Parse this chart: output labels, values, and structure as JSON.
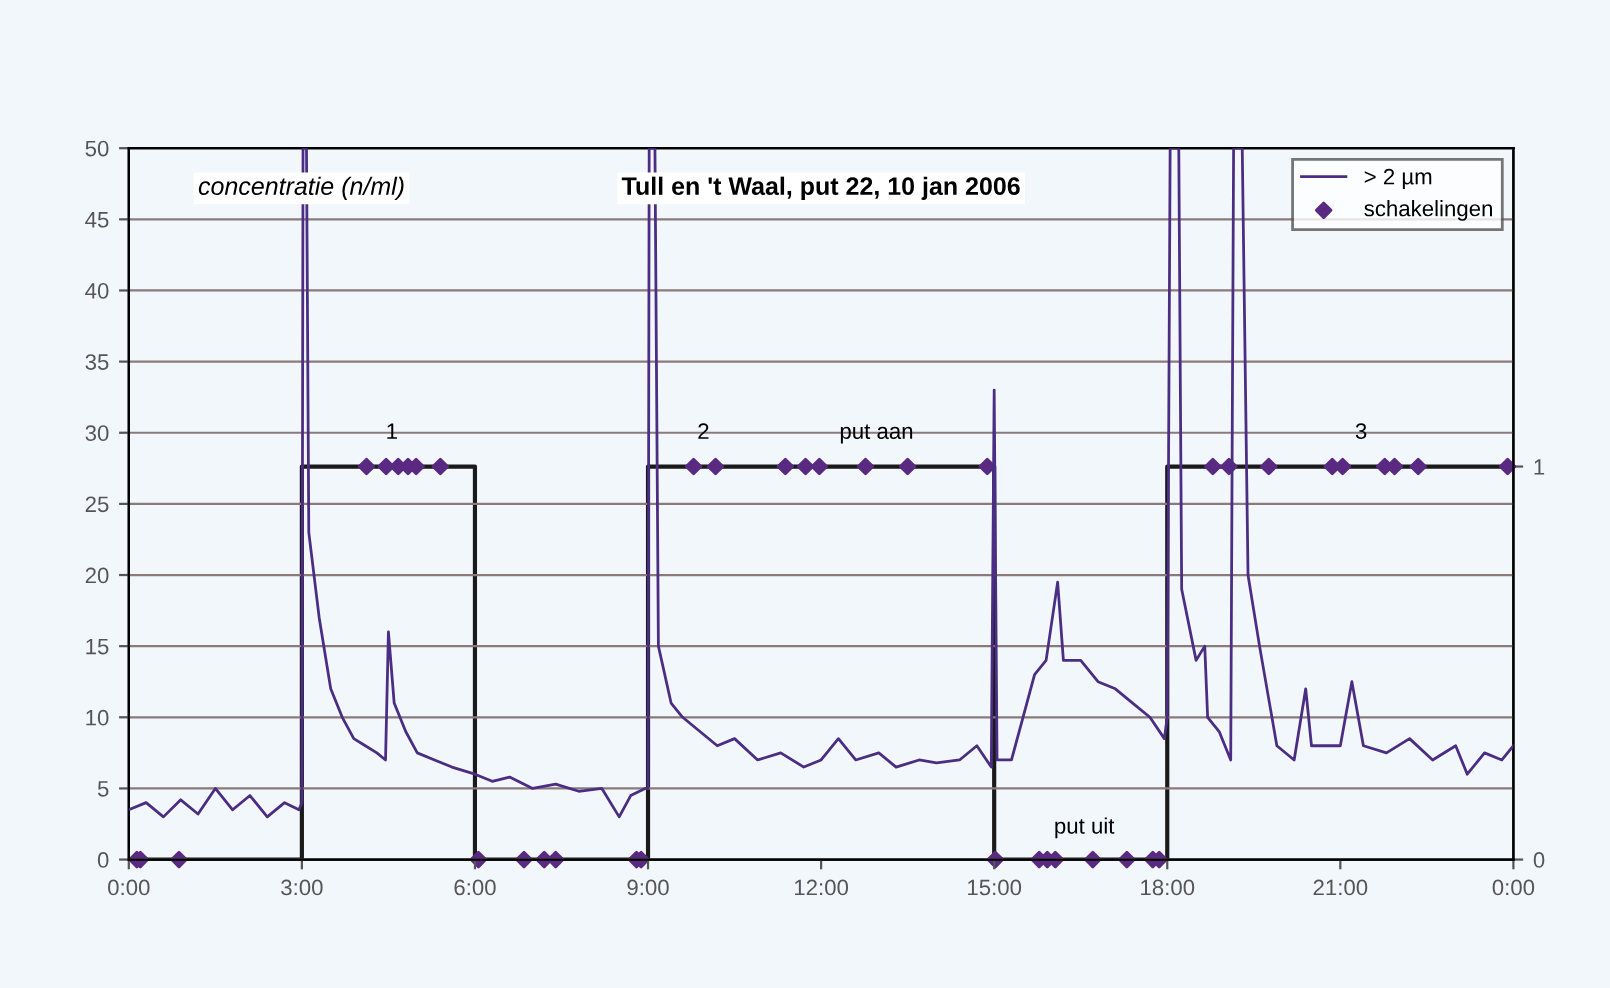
{
  "chart_data": {
    "type": "line",
    "title": "Tull en 't Waal, put 22, 10 jan 2006",
    "ylabel": "concentratie (n/ml)",
    "xlim": [
      0,
      24
    ],
    "xticks": [
      {
        "value": 0,
        "label": "0:00"
      },
      {
        "value": 3,
        "label": "3:00"
      },
      {
        "value": 6,
        "label": "6:00"
      },
      {
        "value": 9,
        "label": "9:00"
      },
      {
        "value": 12,
        "label": "12:00"
      },
      {
        "value": 15,
        "label": "15:00"
      },
      {
        "value": 18,
        "label": "18:00"
      },
      {
        "value": 21,
        "label": "21:00"
      },
      {
        "value": 24,
        "label": "0:00"
      }
    ],
    "ylim": [
      0,
      50
    ],
    "yticks": [
      0,
      5,
      10,
      15,
      20,
      25,
      30,
      35,
      40,
      45,
      50
    ],
    "y2lim": [
      0,
      1.81
    ],
    "y2ticks": [
      0,
      1
    ],
    "grid": "y",
    "legend": "top right",
    "series": [
      {
        "name": "> 2 µm",
        "color": "#4b2e83",
        "x": [
          0,
          0.3,
          0.6,
          0.9,
          1.2,
          1.5,
          1.8,
          2.1,
          2.4,
          2.7,
          2.95,
          3.0,
          3.02,
          3.08,
          3.12,
          3.3,
          3.5,
          3.7,
          3.9,
          4.1,
          4.3,
          4.45,
          4.5,
          4.6,
          4.8,
          5.0,
          5.3,
          5.6,
          6.0,
          6.3,
          6.6,
          7.0,
          7.4,
          7.8,
          8.2,
          8.5,
          8.7,
          8.95,
          9.0,
          9.02,
          9.12,
          9.18,
          9.4,
          9.6,
          9.9,
          10.2,
          10.5,
          10.9,
          11.3,
          11.7,
          12.0,
          12.3,
          12.6,
          13.0,
          13.3,
          13.7,
          14.0,
          14.4,
          14.7,
          14.95,
          15.0,
          15.05,
          15.3,
          15.5,
          15.7,
          15.9,
          16.1,
          16.2,
          16.5,
          16.8,
          17.1,
          17.4,
          17.7,
          17.95,
          18.0,
          18.05,
          18.2,
          18.25,
          18.5,
          18.65,
          18.7,
          18.9,
          19.1,
          19.15,
          19.3,
          19.4,
          19.6,
          19.9,
          20.2,
          20.4,
          20.5,
          20.7,
          21.0,
          21.2,
          21.4,
          21.8,
          22.2,
          22.6,
          23.0,
          23.2,
          23.5,
          23.8,
          24
        ],
        "values": [
          3.5,
          4,
          3,
          4.2,
          3.2,
          5,
          3.5,
          4.5,
          3.0,
          4.0,
          3.5,
          4,
          50,
          50,
          23,
          17,
          12,
          10,
          8.5,
          8,
          7.5,
          7,
          16,
          11,
          9,
          7.5,
          7,
          6.5,
          6,
          5.5,
          5.8,
          5,
          5.3,
          4.8,
          5,
          3.0,
          4.5,
          5,
          5,
          50,
          50,
          15,
          11,
          10,
          9,
          8,
          8.5,
          7,
          7.5,
          6.5,
          7,
          8.5,
          7,
          7.5,
          6.5,
          7,
          6.8,
          7,
          8,
          6.5,
          33,
          7,
          7,
          10,
          13,
          14,
          19.5,
          14,
          14,
          12.5,
          12,
          11,
          10,
          8.5,
          10,
          50,
          50,
          19,
          14,
          15,
          10,
          9,
          7,
          50,
          50,
          20,
          15,
          8,
          7,
          12,
          8,
          8,
          8,
          12.5,
          8,
          7.5,
          8.5,
          7,
          8,
          6,
          7.5,
          7,
          8
        ]
      },
      {
        "type": "step",
        "axis": "y2",
        "color": "#1a1a1a",
        "x": [
          0,
          3,
          6,
          9,
          15,
          18,
          24
        ],
        "values": [
          0,
          1,
          0,
          1,
          0,
          1,
          1
        ]
      },
      {
        "name": "schakelingen",
        "type": "scatter",
        "axis": "y2",
        "marker": "diamond",
        "color": "#5a2a82",
        "x": [
          0.14,
          0.2,
          0.87,
          4.12,
          4.46,
          4.67,
          4.84,
          4.98,
          5.4,
          6.06,
          6.85,
          7.2,
          7.4,
          8.8,
          8.88,
          9.79,
          10.17,
          11.38,
          11.73,
          11.97,
          12.77,
          13.5,
          14.88,
          15.02,
          15.78,
          15.92,
          16.06,
          16.71,
          17.3,
          17.75,
          17.86,
          18.79,
          19.07,
          19.76,
          20.86,
          21.04,
          21.77,
          21.94,
          22.35,
          23.9
        ],
        "values": [
          0,
          0,
          0,
          1,
          1,
          1,
          1,
          1,
          1,
          0,
          0,
          0,
          0,
          0,
          0,
          1,
          1,
          1,
          1,
          1,
          1,
          1,
          1,
          0,
          0,
          0,
          0,
          0,
          0,
          0,
          0,
          1,
          1,
          1,
          1,
          1,
          1,
          1,
          1,
          1
        ]
      }
    ],
    "annotations": [
      "1",
      "2",
      "put aan",
      "put uit",
      "3"
    ]
  }
}
